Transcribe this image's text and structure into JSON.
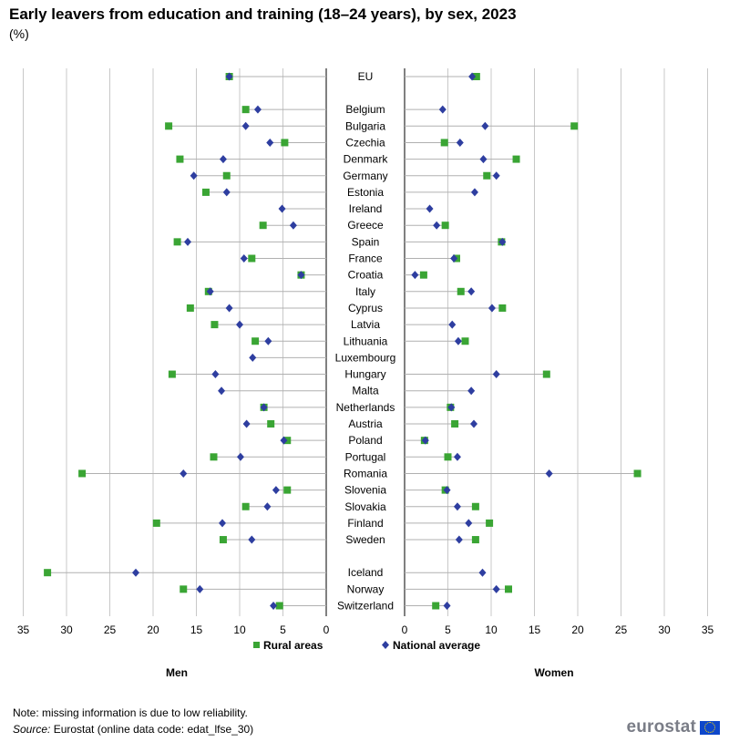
{
  "header": {
    "title": "Early leavers from education and training (18–24 years), by sex, 2023",
    "subtitle": "(%)"
  },
  "footer": {
    "note": "Note: missing information is due to low reliability.",
    "source_label": "Source:",
    "source_text": " Eurostat (online data code: edat_lfse_30)",
    "logo_text": "eurostat",
    "logo_icon": "eu-flag-icon"
  },
  "colors": {
    "rural": "#3aa534",
    "national": "#2e3ea0",
    "grid": "#c8c8c8",
    "connector": "#b0b0b0"
  },
  "chart_data": {
    "type": "scatter",
    "categories": [
      "EU",
      "Belgium",
      "Bulgaria",
      "Czechia",
      "Denmark",
      "Germany",
      "Estonia",
      "Ireland",
      "Greece",
      "Spain",
      "France",
      "Croatia",
      "Italy",
      "Cyprus",
      "Latvia",
      "Lithuania",
      "Luxembourg",
      "Hungary",
      "Malta",
      "Netherlands",
      "Austria",
      "Poland",
      "Portugal",
      "Romania",
      "Slovenia",
      "Slovakia",
      "Finland",
      "Sweden",
      "Iceland",
      "Norway",
      "Switzerland"
    ],
    "legend": {
      "rural": "Rural areas",
      "national": "National average"
    },
    "xlim": [
      0,
      35
    ],
    "ticks": [
      35,
      30,
      25,
      20,
      15,
      10,
      5,
      0
    ],
    "grid": true,
    "legend_position": "bottom",
    "panels": [
      {
        "name": "Men",
        "side": "left",
        "series": [
          {
            "name": "Rural areas",
            "marker": "square",
            "values": [
              11.2,
              9.3,
              18.2,
              4.8,
              16.9,
              11.5,
              13.9,
              null,
              7.3,
              17.2,
              8.6,
              2.9,
              13.6,
              15.7,
              12.9,
              8.2,
              null,
              17.8,
              null,
              7.2,
              6.4,
              4.5,
              13.0,
              28.2,
              4.5,
              9.3,
              19.6,
              11.9,
              32.2,
              16.5,
              5.4
            ]
          },
          {
            "name": "National average",
            "marker": "diamond",
            "values": [
              11.2,
              7.9,
              9.3,
              6.5,
              11.9,
              15.3,
              11.5,
              5.1,
              3.8,
              16.0,
              9.5,
              2.9,
              13.4,
              11.2,
              10.0,
              6.7,
              8.5,
              12.8,
              12.1,
              7.2,
              9.2,
              4.9,
              9.9,
              16.5,
              5.8,
              6.8,
              12.0,
              8.6,
              22.0,
              14.6,
              6.1
            ]
          }
        ]
      },
      {
        "name": "Women",
        "side": "right",
        "series": [
          {
            "name": "Rural areas",
            "marker": "square",
            "values": [
              8.3,
              null,
              19.6,
              4.6,
              12.9,
              9.5,
              null,
              null,
              4.7,
              11.2,
              6.0,
              2.2,
              6.5,
              11.3,
              null,
              7.0,
              null,
              16.4,
              null,
              5.3,
              5.8,
              2.3,
              5.0,
              26.9,
              4.7,
              8.2,
              9.8,
              8.2,
              null,
              12.0,
              3.6
            ]
          },
          {
            "name": "National average",
            "marker": "diamond",
            "values": [
              7.8,
              4.4,
              9.3,
              6.4,
              9.1,
              10.6,
              8.1,
              2.9,
              3.7,
              11.3,
              5.7,
              1.2,
              7.7,
              10.1,
              5.5,
              6.2,
              null,
              10.6,
              7.7,
              5.4,
              8.0,
              2.4,
              6.1,
              16.7,
              4.9,
              6.1,
              7.4,
              6.3,
              9.0,
              10.6,
              4.9
            ]
          }
        ]
      }
    ]
  }
}
